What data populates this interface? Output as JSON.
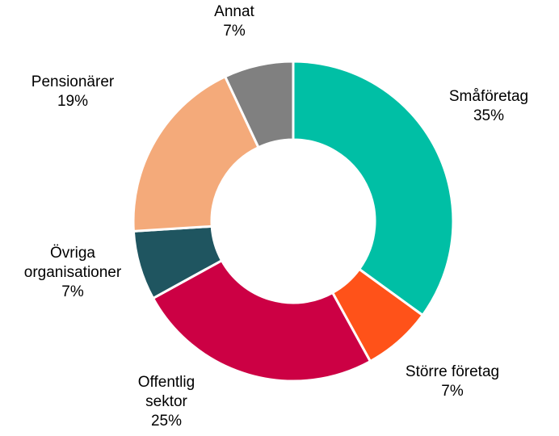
{
  "chart_data": {
    "type": "pie",
    "variant": "donut",
    "title": "",
    "slices": [
      {
        "label_lines": [
          "Småföretag"
        ],
        "value": 35,
        "value_label": "35%",
        "color": "#00bfa5"
      },
      {
        "label_lines": [
          "Större företag"
        ],
        "value": 7,
        "value_label": "7%",
        "color": "#ff5219"
      },
      {
        "label_lines": [
          "Offentlig",
          "sektor"
        ],
        "value": 25,
        "value_label": "25%",
        "color": "#cc0044"
      },
      {
        "label_lines": [
          "Övriga",
          "organisationer"
        ],
        "value": 7,
        "value_label": "7%",
        "color": "#1f5560"
      },
      {
        "label_lines": [
          "Pensionärer"
        ],
        "value": 19,
        "value_label": "19%",
        "color": "#f4aa7a"
      },
      {
        "label_lines": [
          "Annat"
        ],
        "value": 7,
        "value_label": "7%",
        "color": "#808080"
      }
    ],
    "start_angle_deg": 0,
    "direction": "clockwise",
    "slice_border_color": "#ffffff",
    "legend": "none",
    "labels": "outside"
  }
}
